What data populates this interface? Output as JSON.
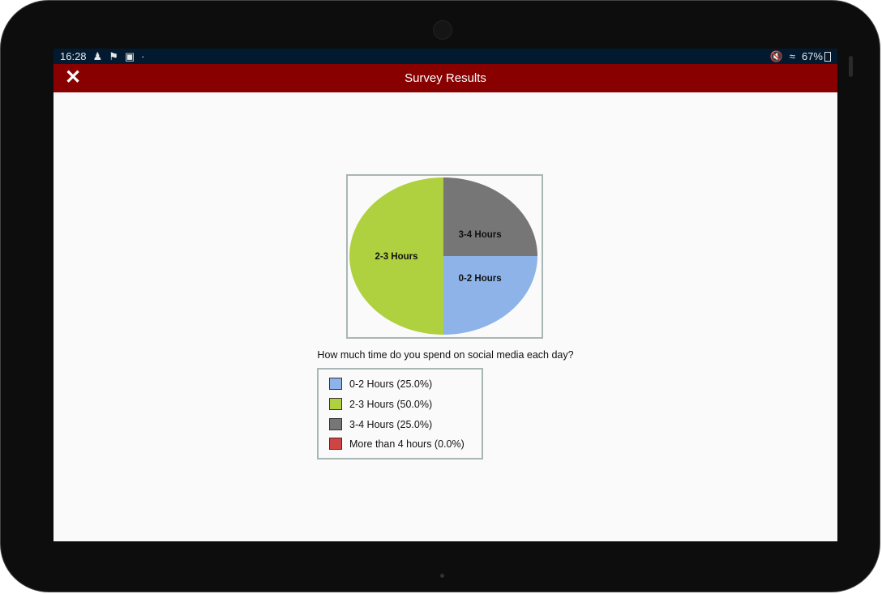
{
  "status_bar": {
    "time": "16:28",
    "notification_icons": [
      "person-icon",
      "flag-icon",
      "image-icon",
      "dot-icon"
    ],
    "battery": "67%",
    "right_icons": [
      "mute-icon",
      "wifi-icon",
      "battery-icon"
    ]
  },
  "header": {
    "title": "Survey Results",
    "close_icon": "close-icon"
  },
  "chart_data": {
    "type": "pie",
    "title": "How much time do you spend on social media each day?",
    "categories": [
      "0-2 Hours",
      "2-3 Hours",
      "3-4 Hours",
      "More than 4 hours"
    ],
    "values": [
      25.0,
      50.0,
      25.0,
      0.0
    ],
    "colors": [
      "#8db3e8",
      "#afd03f",
      "#767676",
      "#d04444"
    ],
    "slice_labels": [
      "0-2 Hours",
      "2-3 Hours",
      "3-4 Hours",
      ""
    ],
    "legend": [
      "0-2 Hours (25.0%)",
      "2-3 Hours (50.0%)",
      "3-4 Hours (25.0%)",
      "More than 4 hours (0.0%)"
    ],
    "legend_placement": "bottom"
  }
}
